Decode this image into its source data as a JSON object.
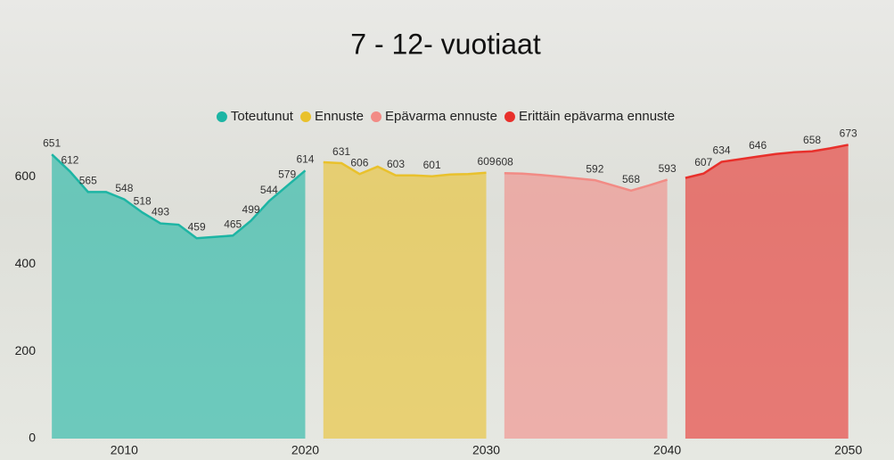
{
  "chart_data": {
    "type": "area",
    "title": "7 - 12- vuotiaat",
    "xlim": [
      2005.5,
      2051
    ],
    "xticks": [
      2010,
      2020,
      2030,
      2040,
      2050
    ],
    "ylim": [
      0,
      680
    ],
    "yticks": [
      0,
      200,
      400,
      600
    ],
    "series": [
      {
        "name": "Toteutunut",
        "color": "#1db5a4",
        "x": [
          2006,
          2007,
          2008,
          2009,
          2010,
          2011,
          2012,
          2013,
          2014,
          2015,
          2016,
          2017,
          2018,
          2019,
          2020
        ],
        "values": [
          651,
          612,
          565,
          565,
          548,
          518,
          493,
          490,
          459,
          462,
          465,
          499,
          544,
          579,
          614
        ],
        "value_labels": [
          "651",
          "612",
          "565",
          null,
          "548",
          "518",
          "493",
          null,
          "459",
          null,
          "465",
          "499",
          "544",
          "579",
          "614"
        ]
      },
      {
        "name": "Ennuste",
        "color": "#e9c12c",
        "x": [
          2021,
          2022,
          2023,
          2024,
          2025,
          2026,
          2027,
          2028,
          2029,
          2030
        ],
        "values": [
          633,
          631,
          606,
          623,
          603,
          603,
          601,
          605,
          606,
          609
        ],
        "value_labels": [
          null,
          "631",
          "606",
          null,
          "603",
          null,
          "601",
          null,
          null,
          "609"
        ]
      },
      {
        "name": "Epävarma ennuste",
        "color": "#f28b85",
        "x": [
          2031,
          2032,
          2033,
          2034,
          2035,
          2036,
          2037,
          2038,
          2039,
          2040
        ],
        "values": [
          608,
          607,
          604,
          600,
          596,
          592,
          580,
          568,
          580,
          593
        ],
        "value_labels": [
          "608",
          null,
          null,
          null,
          null,
          "592",
          null,
          "568",
          null,
          "593"
        ]
      },
      {
        "name": "Erittäin epävarma ennuste",
        "color": "#e8302b",
        "x": [
          2041,
          2042,
          2043,
          2044,
          2045,
          2046,
          2047,
          2048,
          2049,
          2050
        ],
        "values": [
          597,
          607,
          634,
          640,
          646,
          652,
          656,
          658,
          665,
          673
        ],
        "value_labels": [
          null,
          "607",
          "634",
          null,
          "646",
          null,
          null,
          "658",
          null,
          "673"
        ]
      }
    ]
  }
}
